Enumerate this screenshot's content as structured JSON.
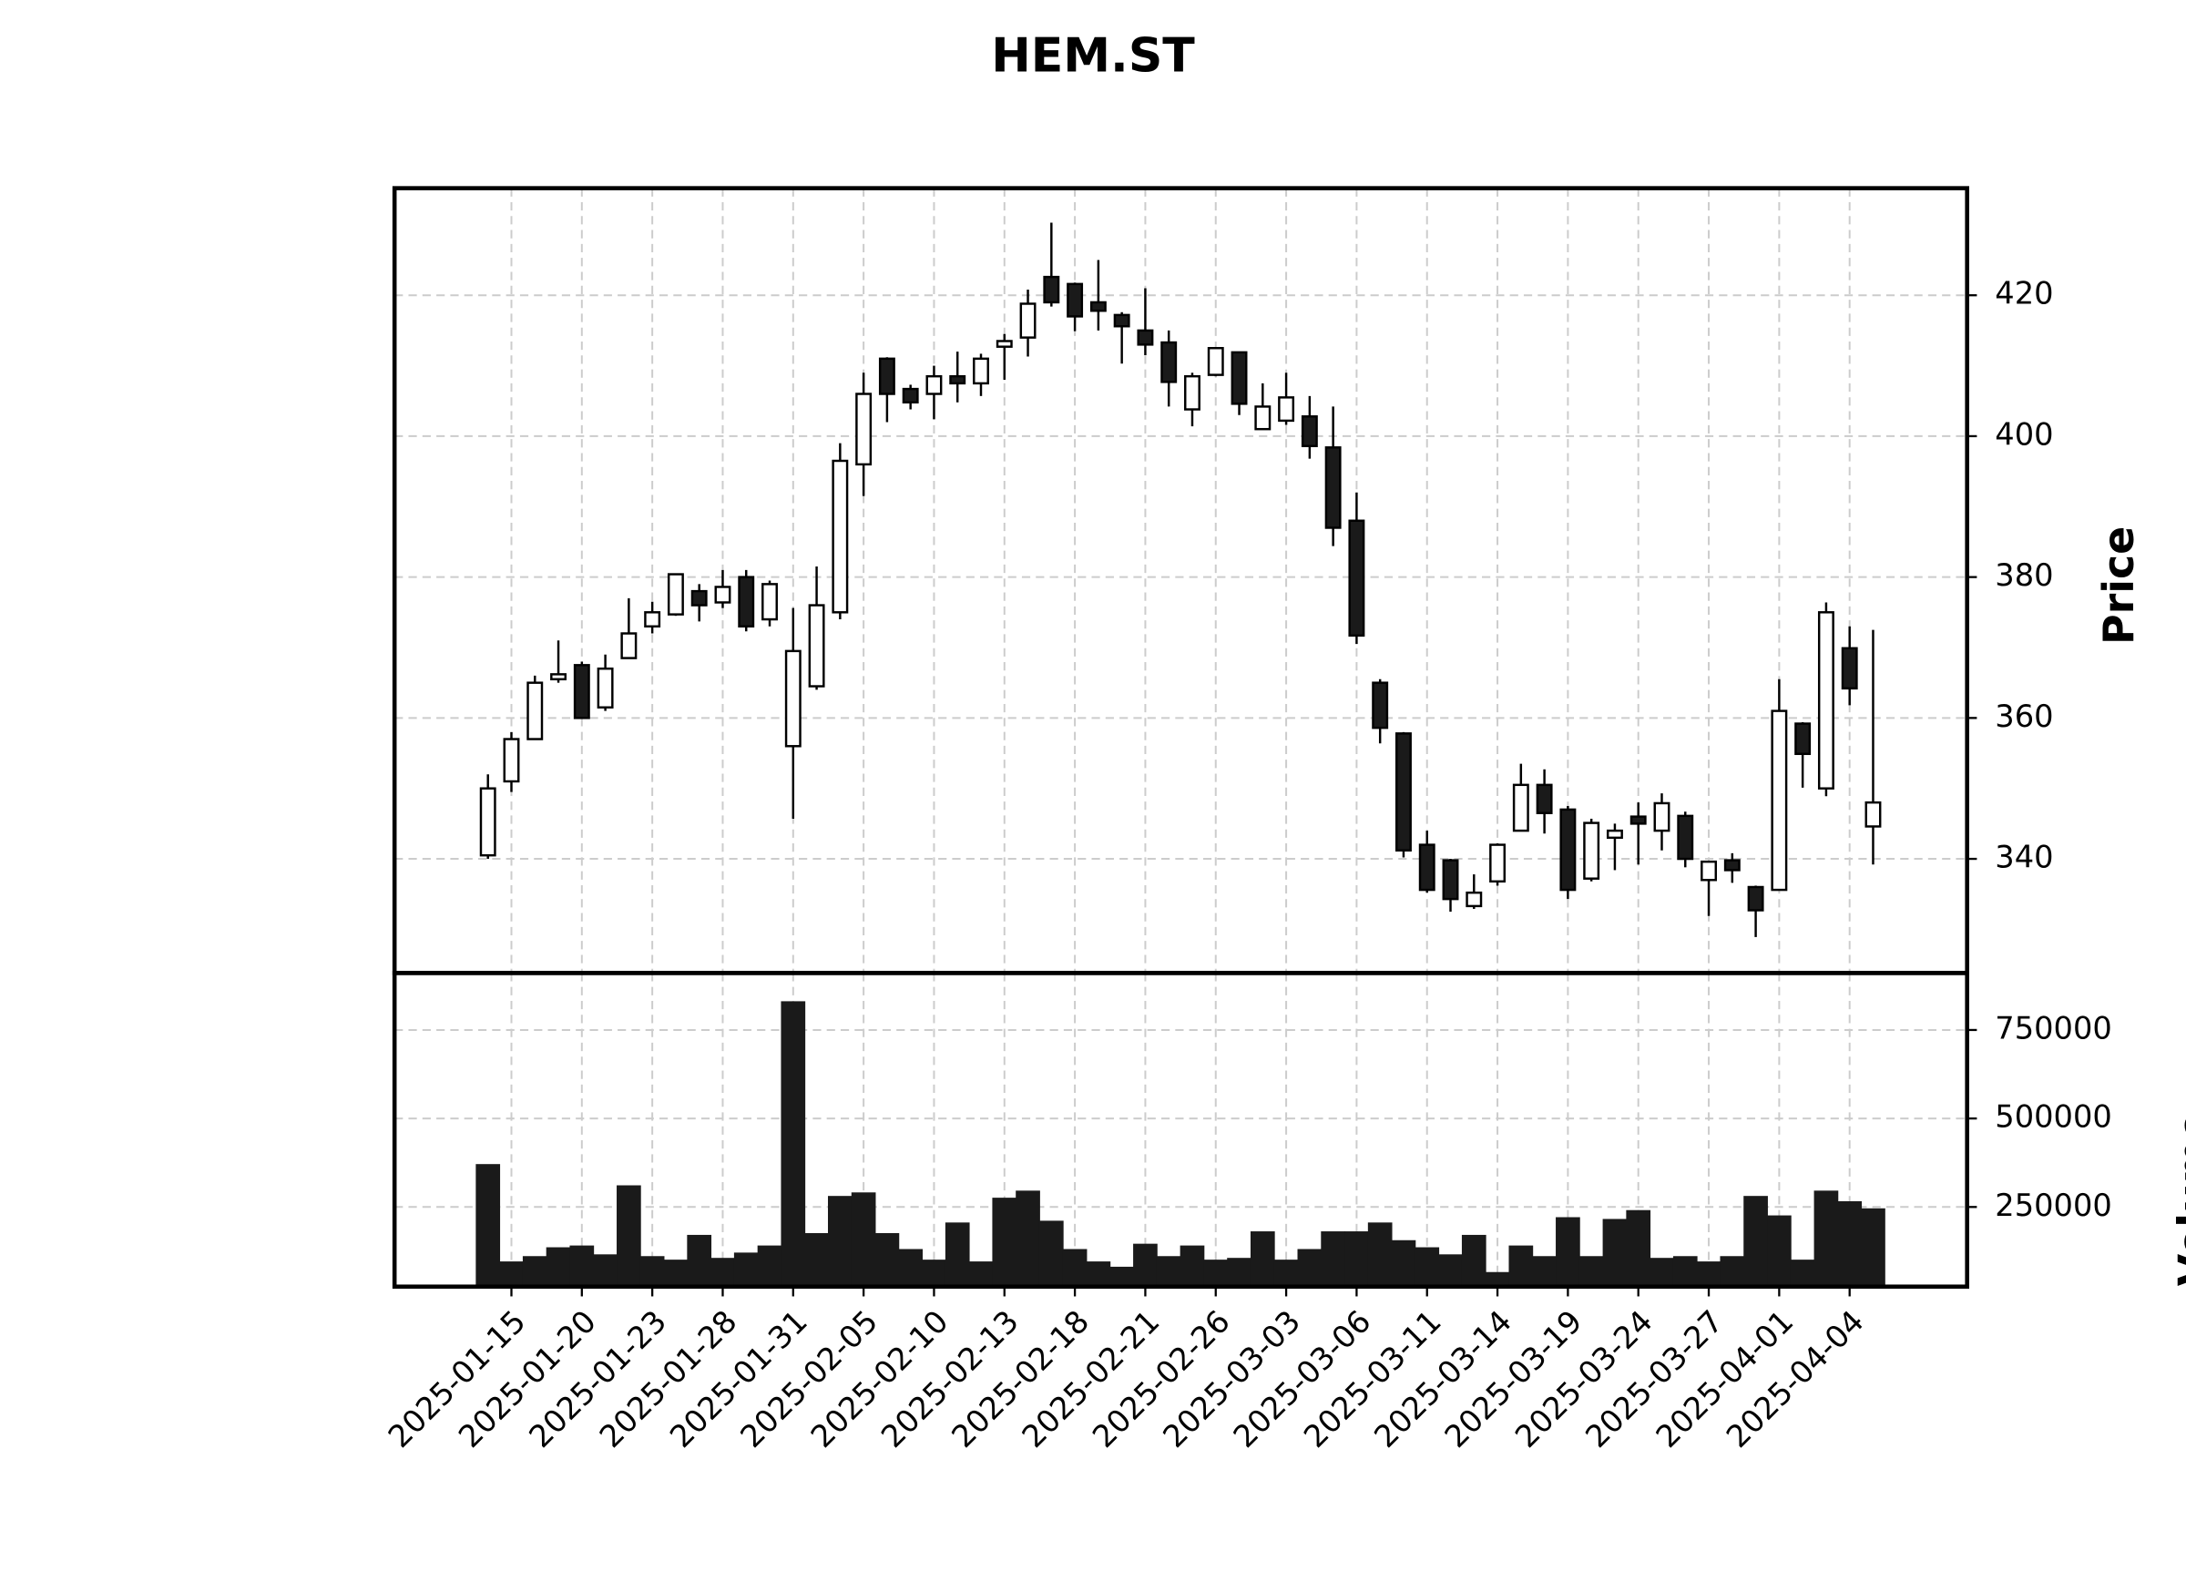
{
  "chart_data": {
    "type": "candlestick",
    "title": "HEM.ST",
    "ylabel": "Price",
    "ylabel2": "Volume",
    "x": [
      "2025-01-14",
      "2025-01-15",
      "2025-01-16",
      "2025-01-17",
      "2025-01-20",
      "2025-01-21",
      "2025-01-22",
      "2025-01-23",
      "2025-01-24",
      "2025-01-27",
      "2025-01-28",
      "2025-01-29",
      "2025-01-30",
      "2025-01-31",
      "2025-02-03",
      "2025-02-04",
      "2025-02-05",
      "2025-02-06",
      "2025-02-07",
      "2025-02-10",
      "2025-02-11",
      "2025-02-12",
      "2025-02-13",
      "2025-02-14",
      "2025-02-17",
      "2025-02-18",
      "2025-02-19",
      "2025-02-20",
      "2025-02-21",
      "2025-02-24",
      "2025-02-25",
      "2025-02-26",
      "2025-02-27",
      "2025-02-28",
      "2025-03-03",
      "2025-03-04",
      "2025-03-05",
      "2025-03-06",
      "2025-03-07",
      "2025-03-10",
      "2025-03-11",
      "2025-03-12",
      "2025-03-13",
      "2025-03-14",
      "2025-03-17",
      "2025-03-18",
      "2025-03-19",
      "2025-03-20",
      "2025-03-21",
      "2025-03-24",
      "2025-03-25",
      "2025-03-26",
      "2025-03-27",
      "2025-03-28",
      "2025-03-31",
      "2025-04-01",
      "2025-04-02",
      "2025-04-03",
      "2025-04-04",
      "2025-04-07"
    ],
    "open": [
      340.5,
      351,
      357,
      365.5,
      367.5,
      361.5,
      368.5,
      373,
      374.7,
      378,
      376.4,
      380,
      374,
      356,
      364.5,
      375,
      396,
      411,
      406.7,
      406,
      408.5,
      407.5,
      412.7,
      414,
      422.6,
      421.6,
      419,
      417.2,
      415,
      413.3,
      403.8,
      408.7,
      411.9,
      401,
      402.2,
      402.8,
      398.4,
      388,
      365,
      357.8,
      342,
      339.8,
      333.3,
      336.8,
      344,
      350.5,
      347,
      337.2,
      343,
      346,
      344,
      346.1,
      337,
      339.8,
      336,
      335.6,
      359.2,
      350,
      369.9,
      344.6
    ],
    "high": [
      352,
      358,
      366,
      371,
      368,
      369,
      377,
      376.5,
      380.5,
      379,
      381,
      381,
      379.5,
      375.6,
      381.5,
      399,
      409,
      411.2,
      407.3,
      410,
      412,
      411.7,
      414.5,
      420.8,
      430.3,
      421.8,
      425,
      417.6,
      421,
      415,
      409,
      412.6,
      412,
      407.5,
      409,
      405.7,
      404.2,
      392,
      365.5,
      358,
      344,
      340,
      337.8,
      342.2,
      353.5,
      352.7,
      347.5,
      345.7,
      345,
      348,
      349.3,
      346.7,
      339.7,
      340.8,
      336.2,
      365.5,
      359.4,
      376.4,
      373,
      372.5
    ],
    "low": [
      340,
      349.5,
      357,
      365,
      360,
      361,
      368.5,
      372,
      374.5,
      373.7,
      375.6,
      372.3,
      373,
      345.7,
      364,
      374,
      391.5,
      402,
      403.8,
      402.4,
      404.8,
      405.7,
      408,
      411.3,
      418.4,
      414.9,
      415,
      410.3,
      411.5,
      404.2,
      401.4,
      408.5,
      403,
      401,
      401.6,
      396.8,
      384.4,
      370.5,
      356.4,
      340.2,
      335.2,
      332.5,
      332.9,
      336.2,
      344,
      343.6,
      334.3,
      336.8,
      338.4,
      339.2,
      341.2,
      338.8,
      331.9,
      336.6,
      328.9,
      335.6,
      350.1,
      348.9,
      361.8,
      339.2
    ],
    "close": [
      350,
      357,
      365,
      366.2,
      360,
      367,
      372,
      375,
      380.4,
      376,
      378.6,
      373,
      379,
      369.5,
      376,
      396.5,
      406,
      406,
      404.8,
      408.5,
      407.5,
      411,
      413.5,
      418.8,
      419,
      417,
      417.8,
      415.6,
      413,
      407.7,
      408.5,
      412.5,
      404.6,
      404.2,
      405.5,
      398.6,
      387,
      371.7,
      358.6,
      341.2,
      335.6,
      334.3,
      335.2,
      342,
      350.5,
      346.5,
      335.6,
      345.1,
      344,
      345,
      347.9,
      340,
      339.6,
      338.4,
      332.7,
      361,
      354.9,
      375,
      364.2,
      348
    ],
    "volume": [
      370000,
      95000,
      110000,
      135000,
      140000,
      115000,
      310000,
      110000,
      100000,
      170000,
      105000,
      120000,
      140000,
      830000,
      175000,
      280000,
      290000,
      175000,
      130000,
      100000,
      205000,
      95000,
      275000,
      295000,
      210000,
      130000,
      95000,
      80000,
      145000,
      110000,
      140000,
      100000,
      105000,
      180000,
      100000,
      130000,
      180000,
      180000,
      205000,
      155000,
      135000,
      115000,
      170000,
      65000,
      140000,
      110000,
      220000,
      110000,
      215000,
      240000,
      105000,
      110000,
      95000,
      110000,
      280000,
      225000,
      100000,
      295000,
      265000,
      245000
    ],
    "ylim": [
      323.8,
      435.2
    ],
    "yticks": [
      340,
      360,
      380,
      400,
      420
    ],
    "y2lim": [
      25000,
      911000
    ],
    "y2ticks": [
      250000,
      500000,
      750000
    ],
    "xticks": [
      "2025-01-15",
      "2025-01-20",
      "2025-01-23",
      "2025-01-28",
      "2025-01-31",
      "2025-02-05",
      "2025-02-10",
      "2025-02-13",
      "2025-02-18",
      "2025-02-21",
      "2025-02-26",
      "2025-03-03",
      "2025-03-06",
      "2025-03-11",
      "2025-03-14",
      "2025-03-19",
      "2025-03-24",
      "2025-03-27",
      "2025-04-01",
      "2025-04-04"
    ],
    "grid": true,
    "up_color": "#ffffff",
    "down_color": "#1a1a1a",
    "edge_color": "#000000",
    "volume_color": "#1a1a1a"
  }
}
